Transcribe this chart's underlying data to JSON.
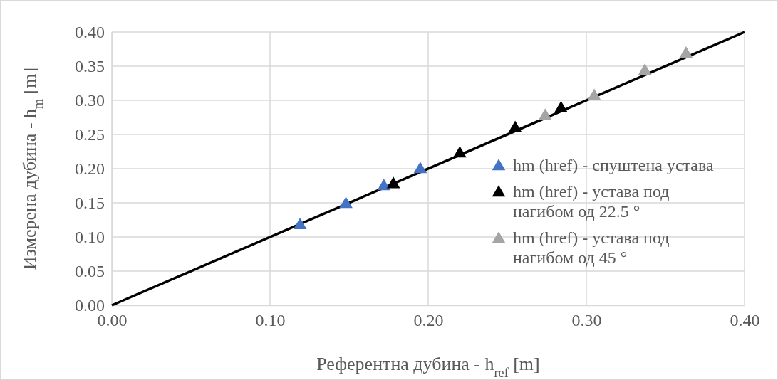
{
  "chart_data": {
    "type": "scatter",
    "xlabel": "Референтна дубина - h$_{ref}$  [m]",
    "ylabel": "Измерена дубина - h$_{m}$  [m]",
    "xlim": [
      0,
      0.4
    ],
    "ylim": [
      0,
      0.4
    ],
    "xticks": [
      {
        "value": 0,
        "label": "0.00"
      },
      {
        "value": 0.1,
        "label": "0.10"
      },
      {
        "value": 0.2,
        "label": "0.20"
      },
      {
        "value": 0.3,
        "label": "0.30"
      },
      {
        "value": 0.4,
        "label": "0.40"
      }
    ],
    "yticks": [
      {
        "value": 0,
        "label": "0.00"
      },
      {
        "value": 0.05,
        "label": "0.05"
      },
      {
        "value": 0.1,
        "label": "0.10"
      },
      {
        "value": 0.15,
        "label": "0.15"
      },
      {
        "value": 0.2,
        "label": "0.20"
      },
      {
        "value": 0.25,
        "label": "0.25"
      },
      {
        "value": 0.3,
        "label": "0.30"
      },
      {
        "value": 0.35,
        "label": "0.35"
      },
      {
        "value": 0.4,
        "label": "0.40"
      }
    ],
    "grid": true,
    "legend": "right",
    "marker": "triangle",
    "series": [
      {
        "type": "line",
        "marker": "none",
        "color": "#000000",
        "x": [
          0,
          0.4
        ],
        "values": [
          0,
          0.4
        ]
      },
      {
        "name": "hm (href) - спуштена устава",
        "color": "#4472c4",
        "x": [
          0.119,
          0.148,
          0.172,
          0.195
        ],
        "values": [
          0.117,
          0.148,
          0.174,
          0.199
        ]
      },
      {
        "name": "hm (href) - устава под нагибом од 22.5 °",
        "color": "#000000",
        "x": [
          0.178,
          0.22,
          0.255,
          0.284
        ],
        "values": [
          0.177,
          0.222,
          0.259,
          0.288
        ]
      },
      {
        "name": "hm (href) - устава под нагибом од 45 °",
        "color": "#a5a5a5",
        "x": [
          0.274,
          0.305,
          0.337,
          0.363
        ],
        "values": [
          0.277,
          0.306,
          0.343,
          0.368
        ]
      }
    ]
  }
}
